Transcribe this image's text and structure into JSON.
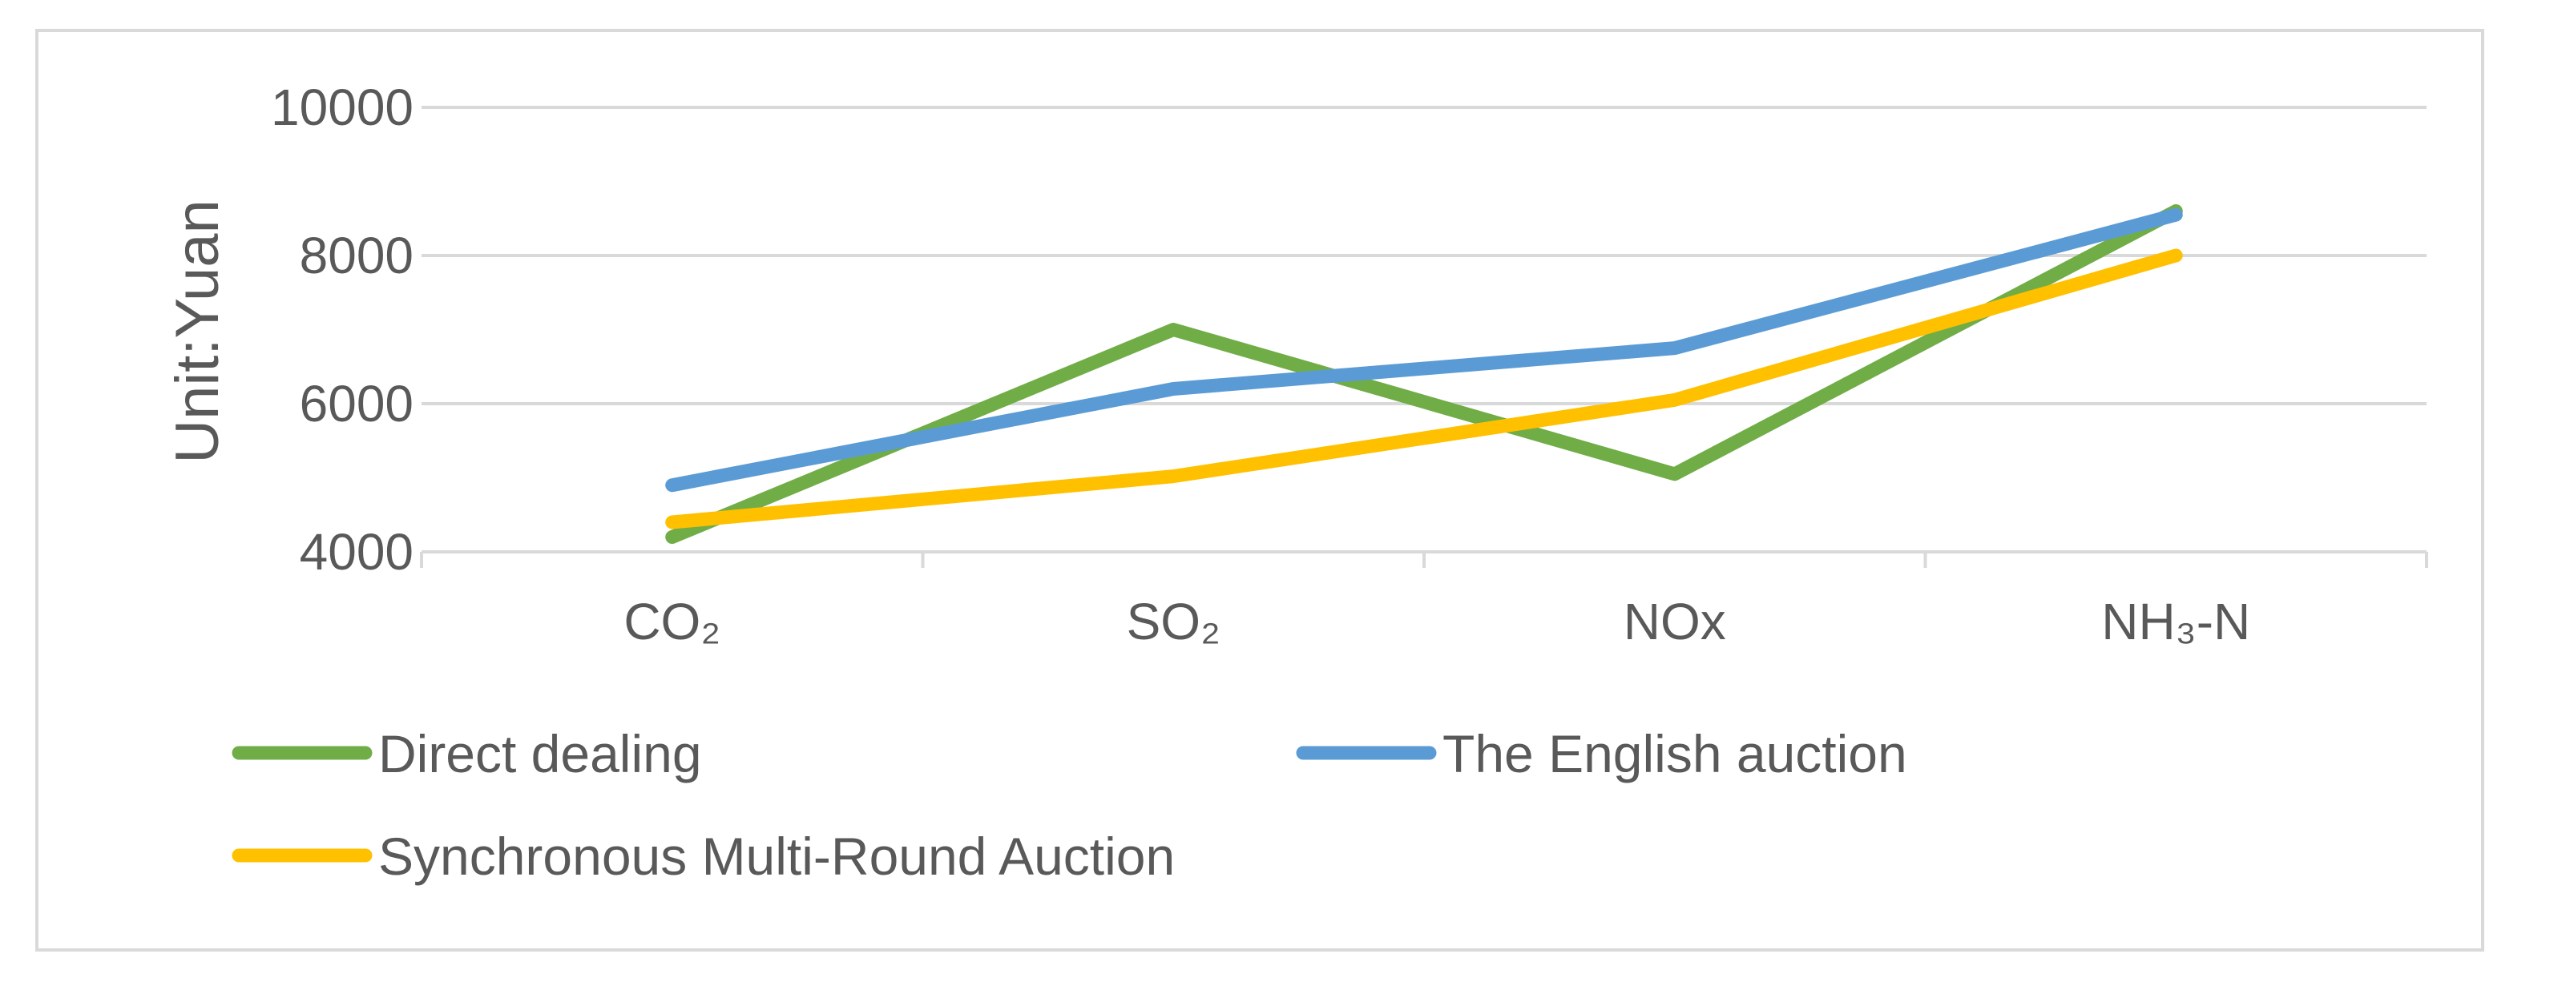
{
  "chart_data": {
    "type": "line",
    "categories": [
      "CO₂",
      "SO₂",
      "NOx",
      "NH₃-N"
    ],
    "series": [
      {
        "name": "Direct dealing",
        "values": [
          4200,
          7000,
          5050,
          8600
        ],
        "color": "#70ad47"
      },
      {
        "name": "The English auction",
        "values": [
          4900,
          6200,
          6750,
          8550
        ],
        "color": "#5b9bd5"
      },
      {
        "name": "Synchronous Multi-Round Auction",
        "values": [
          4400,
          5020,
          6050,
          8000
        ],
        "color": "#ffc000"
      }
    ],
    "title": "",
    "xlabel": "",
    "ylabel": "Unit:Yuan",
    "ylim": [
      4000,
      10000
    ],
    "yticks": [
      4000,
      6000,
      8000,
      10000
    ],
    "ytick_labels": [
      "4000",
      "6000",
      "8000",
      "10000"
    ],
    "grid": true,
    "legend_position": "bottom",
    "gridline_color": "#d9d9d9",
    "text_color": "#595959"
  }
}
